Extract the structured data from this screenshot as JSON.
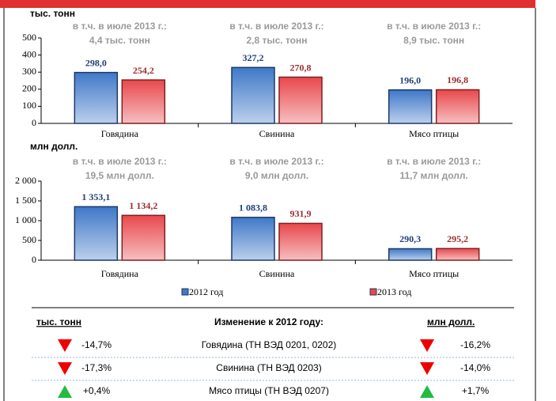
{
  "chart_data": [
    {
      "type": "bar",
      "unit_label": "тыс. тонн",
      "categories": [
        "Говядина",
        "Свинина",
        "Мясо птицы"
      ],
      "annotations": [
        [
          "в т.ч. в июле 2013 г.:",
          "4,4 тыс. тонн"
        ],
        [
          "в т.ч. в июле 2013 г.:",
          "2,8 тыс. тонн"
        ],
        [
          "в т.ч. в июле 2013 г.:",
          "8,9 тыс. тонн"
        ]
      ],
      "series": [
        {
          "color": "#3f78c8",
          "label_color": "#1f3f7a",
          "values": [
            298.0,
            327.2,
            196.0
          ],
          "value_labels": [
            "298,0",
            "327,2",
            "196,0"
          ]
        },
        {
          "color": "#e8484c",
          "label_color": "#9b2d30",
          "values": [
            254.2,
            270.8,
            196.8
          ],
          "value_labels": [
            "254,2",
            "270,8",
            "196,8"
          ]
        }
      ],
      "ylim": [
        0,
        500
      ],
      "yticks": [
        0,
        100,
        200,
        300,
        400,
        500
      ]
    },
    {
      "type": "bar",
      "unit_label": "млн долл.",
      "categories": [
        "Говядина",
        "Свинина",
        "Мясо птицы"
      ],
      "annotations": [
        [
          "в т.ч. в июле 2013 г.:",
          "19,5 млн долл."
        ],
        [
          "в т.ч. в июле 2013 г.:",
          "9,0 млн долл."
        ],
        [
          "в т.ч. в июле 2013 г.:",
          "11,7 млн долл."
        ]
      ],
      "series": [
        {
          "name": "2012 год",
          "color": "#3f78c8",
          "label_color": "#1f3f7a",
          "values": [
            1353.1,
            1083.8,
            290.3
          ],
          "value_labels": [
            "1 353,1",
            "1 083,8",
            "290,3"
          ]
        },
        {
          "name": "2013 год",
          "color": "#e8484c",
          "label_color": "#9b2d30",
          "values": [
            1134.2,
            931.9,
            295.2
          ],
          "value_labels": [
            "1 134,2",
            "931,9",
            "295,2"
          ]
        }
      ],
      "ylim": [
        0,
        2000
      ],
      "yticks": [
        0,
        500,
        {
          "value": 1000,
          "label": "1 000"
        },
        {
          "value": 1500,
          "label": "1 500"
        },
        {
          "value": 2000,
          "label": "2 000"
        }
      ]
    }
  ],
  "table": {
    "headers": [
      "тыс. тонн",
      "Изменение к 2012 году:",
      "млн долл."
    ],
    "rows": [
      {
        "left": "-14,7%",
        "left_trend": "down",
        "name": "Говядина (ТН ВЭД 0201, 0202)",
        "right": "-16,2%",
        "right_trend": "down"
      },
      {
        "left": "-17,3%",
        "left_trend": "down",
        "name": "Свинина (ТН ВЭД 0203)",
        "right": "-14,0%",
        "right_trend": "down"
      },
      {
        "left": "+0,4%",
        "left_trend": "up",
        "name": "Мясо птицы (ТН ВЭД 0207)",
        "right": "+1,7%",
        "right_trend": "up"
      }
    ]
  }
}
